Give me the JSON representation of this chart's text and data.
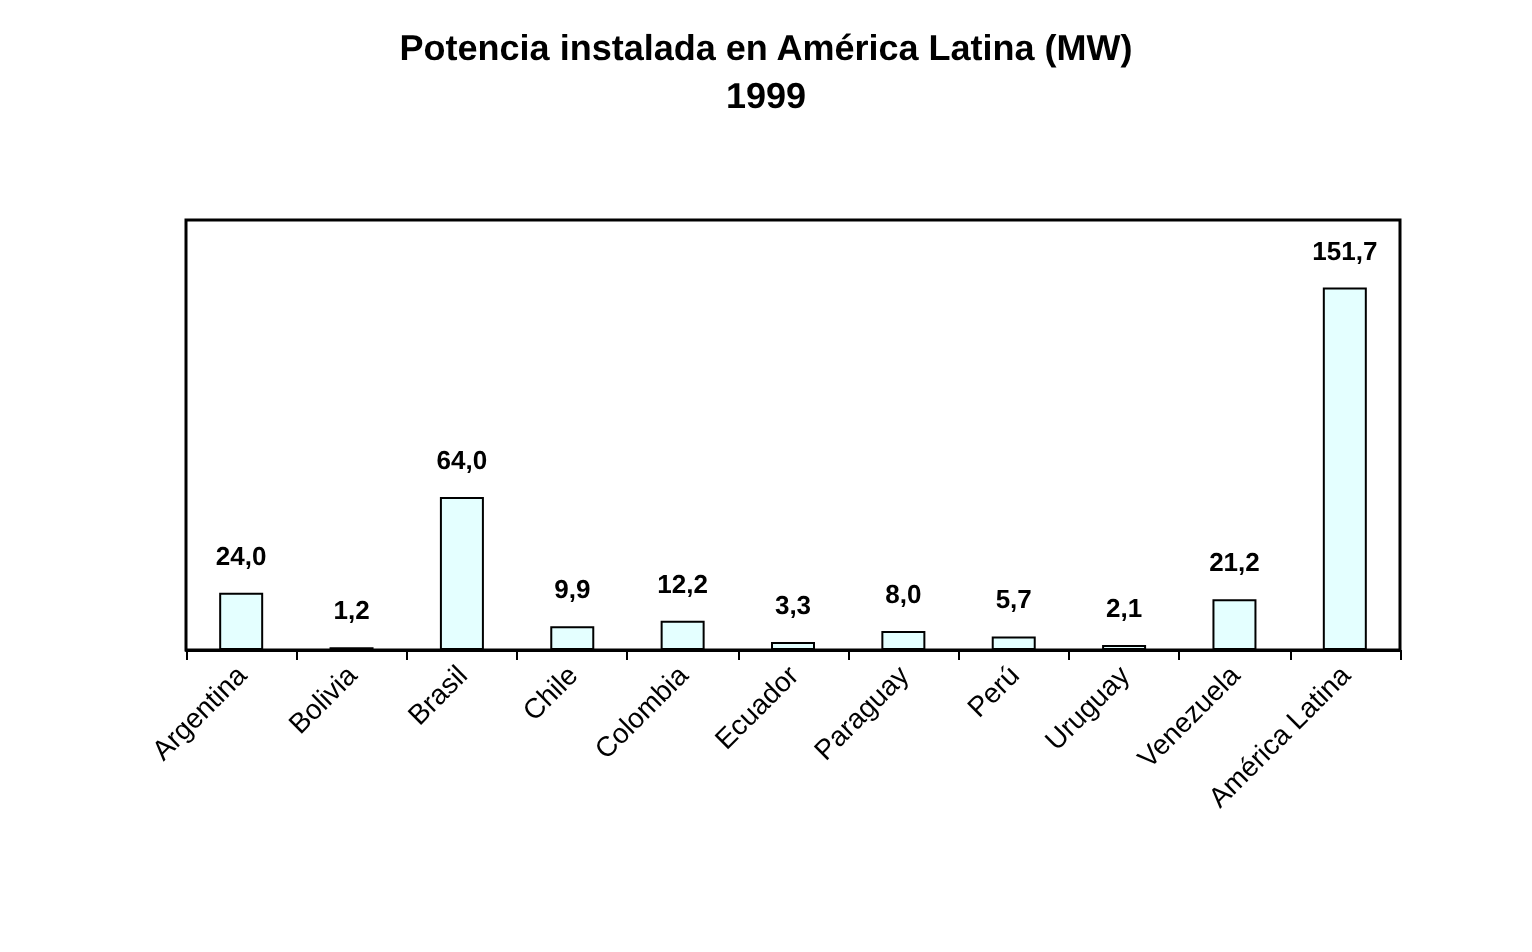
{
  "chart_data": {
    "type": "bar",
    "title": "Potencia instalada en América Latina (MW)",
    "subtitle": "1999",
    "categories": [
      "Argentina",
      "Bolivia",
      "Brasil",
      "Chile",
      "Colombia",
      "Ecuador",
      "Paraguay",
      "Perú",
      "Uruguay",
      "Venezuela",
      "América Latina"
    ],
    "values": [
      24.0,
      1.2,
      64.0,
      9.9,
      12.2,
      3.3,
      8.0,
      5.7,
      2.1,
      21.2,
      151.7
    ],
    "value_labels": [
      "24,0",
      "1,2",
      "64,0",
      "9,9",
      "12,2",
      "3,3",
      "8,0",
      "5,7",
      "2,1",
      "21,2",
      "151,7"
    ],
    "color": "#e4ffff",
    "tick_labels": "x",
    "grid": false
  }
}
